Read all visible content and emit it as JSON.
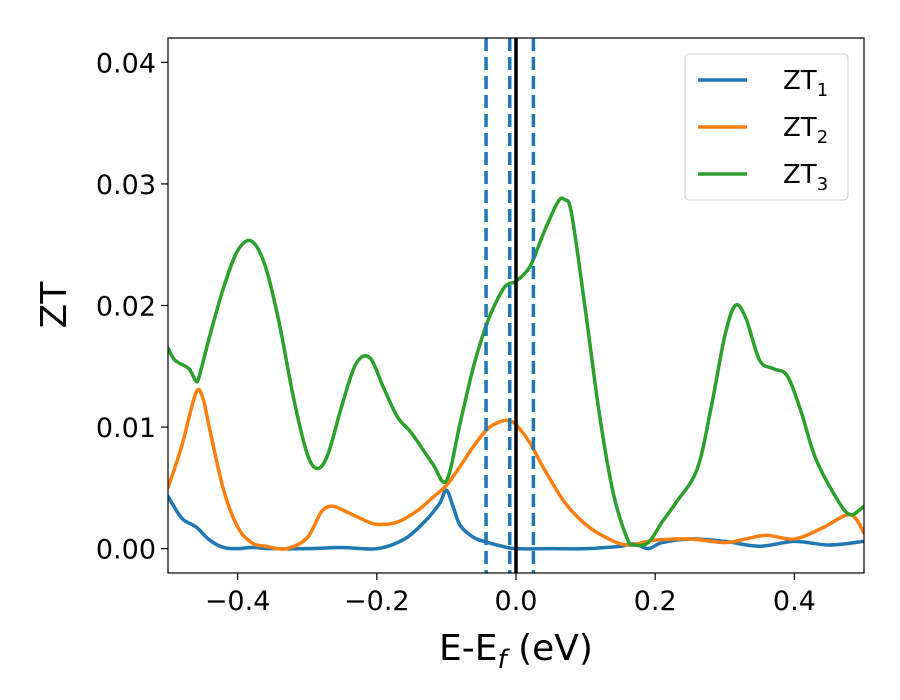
{
  "chart_data": {
    "type": "line",
    "title": "",
    "xlabel": "E-E",
    "xlabel_sub": "f",
    "xlabel_unit": " (eV)",
    "ylabel": "ZT",
    "xlim": [
      -0.5,
      0.5
    ],
    "ylim": [
      -0.002,
      0.042
    ],
    "x_ticks": [
      -0.4,
      -0.2,
      0.0,
      0.2,
      0.4
    ],
    "x_tick_labels": [
      "−0.4",
      "−0.2",
      "0.0",
      "0.2",
      "0.4"
    ],
    "y_ticks": [
      0.0,
      0.01,
      0.02,
      0.03,
      0.04
    ],
    "y_tick_labels": [
      "0.00",
      "0.01",
      "0.02",
      "0.03",
      "0.04"
    ],
    "grid": false,
    "legend_position": "top-right",
    "vertical_lines": [
      {
        "x": -0.043,
        "style": "dashed",
        "color": "#1f77b4"
      },
      {
        "x": -0.009,
        "style": "dashed",
        "color": "#1f77b4"
      },
      {
        "x": 0.025,
        "style": "dashed",
        "color": "#1f77b4"
      },
      {
        "x": 0.0,
        "style": "solid",
        "color": "#000000"
      }
    ],
    "series": [
      {
        "name": "ZT",
        "sub": "1",
        "color": "#1f77b4",
        "x": [
          -0.5,
          -0.48,
          -0.46,
          -0.44,
          -0.42,
          -0.4,
          -0.38,
          -0.35,
          -0.3,
          -0.25,
          -0.2,
          -0.16,
          -0.13,
          -0.11,
          -0.1,
          -0.09,
          -0.08,
          -0.06,
          -0.04,
          -0.02,
          0.0,
          0.05,
          0.1,
          0.15,
          0.17,
          0.19,
          0.21,
          0.25,
          0.3,
          0.35,
          0.4,
          0.45,
          0.5
        ],
        "y": [
          0.0043,
          0.0025,
          0.0018,
          0.0007,
          0.0001,
          0.0,
          0.0001,
          0.0,
          0.0,
          0.0001,
          0.0,
          0.0008,
          0.0023,
          0.0037,
          0.0048,
          0.0034,
          0.0019,
          0.0009,
          0.0005,
          0.0002,
          0.0,
          0.0,
          0.0,
          0.0002,
          0.0004,
          0.0,
          0.0005,
          0.0008,
          0.0006,
          0.0002,
          0.0006,
          0.0003,
          0.0006
        ]
      },
      {
        "name": "ZT",
        "sub": "2",
        "color": "#ff7f0e",
        "x": [
          -0.5,
          -0.48,
          -0.46,
          -0.45,
          -0.44,
          -0.42,
          -0.4,
          -0.38,
          -0.36,
          -0.33,
          -0.3,
          -0.28,
          -0.265,
          -0.25,
          -0.22,
          -0.2,
          -0.17,
          -0.14,
          -0.12,
          -0.1,
          -0.08,
          -0.06,
          -0.04,
          -0.02,
          -0.01,
          0.0,
          0.02,
          0.04,
          0.07,
          0.1,
          0.13,
          0.16,
          0.2,
          0.25,
          0.3,
          0.33,
          0.36,
          0.4,
          0.44,
          0.48,
          0.5
        ],
        "y": [
          0.005,
          0.0085,
          0.0128,
          0.0124,
          0.0098,
          0.0048,
          0.0018,
          0.0005,
          0.0002,
          0.0,
          0.0009,
          0.003,
          0.0035,
          0.0032,
          0.0024,
          0.002,
          0.0022,
          0.0032,
          0.0042,
          0.0052,
          0.0068,
          0.0085,
          0.0099,
          0.0105,
          0.0105,
          0.0102,
          0.0087,
          0.0066,
          0.0038,
          0.002,
          0.0009,
          0.0003,
          0.0007,
          0.0008,
          0.0005,
          0.0008,
          0.0011,
          0.0008,
          0.0017,
          0.0028,
          0.0013
        ]
      },
      {
        "name": "ZT",
        "sub": "3",
        "color": "#2ca02c",
        "x": [
          -0.5,
          -0.49,
          -0.47,
          -0.46,
          -0.455,
          -0.44,
          -0.42,
          -0.4,
          -0.38,
          -0.36,
          -0.34,
          -0.32,
          -0.3,
          -0.285,
          -0.27,
          -0.25,
          -0.23,
          -0.21,
          -0.19,
          -0.17,
          -0.15,
          -0.12,
          -0.1,
          -0.08,
          -0.06,
          -0.04,
          -0.02,
          -0.01,
          0.0,
          0.02,
          0.04,
          0.06,
          0.07,
          0.08,
          0.1,
          0.12,
          0.14,
          0.16,
          0.17,
          0.19,
          0.21,
          0.23,
          0.26,
          0.28,
          0.3,
          0.315,
          0.33,
          0.35,
          0.37,
          0.39,
          0.41,
          0.43,
          0.46,
          0.48,
          0.5
        ],
        "y": [
          0.0165,
          0.0155,
          0.0148,
          0.0138,
          0.0142,
          0.0175,
          0.0215,
          0.0245,
          0.0253,
          0.0232,
          0.0185,
          0.0125,
          0.0078,
          0.0066,
          0.0078,
          0.0118,
          0.0152,
          0.0157,
          0.0132,
          0.0108,
          0.0095,
          0.007,
          0.0056,
          0.0104,
          0.0152,
          0.0188,
          0.0212,
          0.0218,
          0.022,
          0.0232,
          0.026,
          0.0285,
          0.0287,
          0.0275,
          0.0195,
          0.011,
          0.0045,
          0.0008,
          0.0003,
          0.0005,
          0.0022,
          0.0038,
          0.0065,
          0.0115,
          0.0175,
          0.02,
          0.019,
          0.0155,
          0.0148,
          0.0142,
          0.0112,
          0.0075,
          0.0042,
          0.0028,
          0.0035
        ]
      }
    ]
  }
}
